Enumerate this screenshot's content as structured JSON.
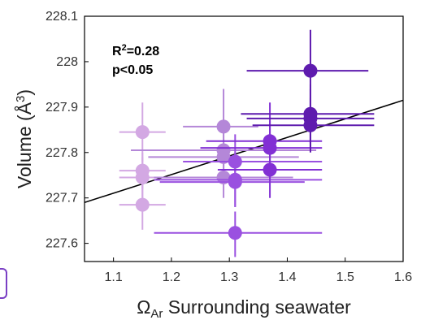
{
  "chart_data": {
    "type": "scatter",
    "title": "",
    "xlabel_symbol": "Ω",
    "xlabel_sub": "Ar",
    "xlabel_rest": " Surrounding seawater",
    "ylabel_main": "Volume (Å",
    "ylabel_sup": "3",
    "ylabel_end": ")",
    "xlim": [
      1.05,
      1.6
    ],
    "ylim": [
      227.56,
      228.1
    ],
    "xticks": [
      "1.1",
      "1.2",
      "1.3",
      "1.4",
      "1.5",
      "1.6"
    ],
    "xtick_values": [
      1.1,
      1.2,
      1.3,
      1.4,
      1.5,
      1.6
    ],
    "yticks": [
      "227.6",
      "227.7",
      "227.8",
      "227.9",
      "228",
      "228.1"
    ],
    "ytick_values": [
      227.6,
      227.7,
      227.8,
      227.9,
      228.0,
      228.1
    ],
    "annotations": {
      "r2_prefix": "R",
      "r2_sup": "2",
      "r2_value": "=0.28",
      "p_value": "p<0.05"
    },
    "fit_line": {
      "x": [
        1.05,
        1.6
      ],
      "y": [
        227.69,
        227.915
      ],
      "color": "#000000"
    },
    "points": [
      {
        "x": 1.15,
        "y": 227.845,
        "xerr": [
          1.11,
          1.19
        ],
        "yerr": [
          227.78,
          227.91
        ],
        "color": "#d3a8e3"
      },
      {
        "x": 1.15,
        "y": 227.76,
        "xerr": [
          1.11,
          1.19
        ],
        "yerr": [
          227.72,
          227.8
        ],
        "color": "#d3a8e3"
      },
      {
        "x": 1.15,
        "y": 227.745,
        "xerr": [
          1.11,
          1.19
        ],
        "yerr": [
          227.7,
          227.79
        ],
        "color": "#d3a8e3"
      },
      {
        "x": 1.15,
        "y": 227.685,
        "xerr": [
          1.11,
          1.19
        ],
        "yerr": [
          227.63,
          227.74
        ],
        "color": "#d3a8e3"
      },
      {
        "x": 1.29,
        "y": 227.857,
        "xerr": [
          1.22,
          1.35
        ],
        "yerr": [
          227.77,
          227.94
        ],
        "color": "#b487d8"
      },
      {
        "x": 1.29,
        "y": 227.805,
        "xerr": [
          1.13,
          1.45
        ],
        "yerr": [
          227.76,
          227.85
        ],
        "color": "#b487d8"
      },
      {
        "x": 1.29,
        "y": 227.79,
        "xerr": [
          1.16,
          1.42
        ],
        "yerr": [
          227.75,
          227.83
        ],
        "color": "#b487d8"
      },
      {
        "x": 1.29,
        "y": 227.745,
        "xerr": [
          1.17,
          1.41
        ],
        "yerr": [
          227.7,
          227.79
        ],
        "color": "#b487d8"
      },
      {
        "x": 1.31,
        "y": 227.78,
        "xerr": [
          1.22,
          1.46
        ],
        "yerr": [
          227.72,
          227.84
        ],
        "color": "#9a50e0"
      },
      {
        "x": 1.31,
        "y": 227.74,
        "xerr": [
          1.17,
          1.46
        ],
        "yerr": [
          227.68,
          227.8
        ],
        "color": "#9a50e0"
      },
      {
        "x": 1.31,
        "y": 227.735,
        "xerr": [
          1.18,
          1.43
        ],
        "yerr": [
          227.68,
          227.79
        ],
        "color": "#9a50e0"
      },
      {
        "x": 1.31,
        "y": 227.623,
        "xerr": [
          1.17,
          1.46
        ],
        "yerr": [
          227.57,
          227.67
        ],
        "color": "#9a50e0"
      },
      {
        "x": 1.37,
        "y": 227.825,
        "xerr": [
          1.26,
          1.46
        ],
        "yerr": [
          227.75,
          227.91
        ],
        "color": "#8230d4"
      },
      {
        "x": 1.37,
        "y": 227.81,
        "xerr": [
          1.25,
          1.46
        ],
        "yerr": [
          227.75,
          227.87
        ],
        "color": "#8230d4"
      },
      {
        "x": 1.37,
        "y": 227.762,
        "xerr": [
          1.28,
          1.46
        ],
        "yerr": [
          227.7,
          227.82
        ],
        "color": "#8230d4"
      },
      {
        "x": 1.44,
        "y": 227.98,
        "xerr": [
          1.33,
          1.54
        ],
        "yerr": [
          227.89,
          228.07
        ],
        "color": "#5e1bae"
      },
      {
        "x": 1.44,
        "y": 227.885,
        "xerr": [
          1.32,
          1.55
        ],
        "yerr": [
          227.82,
          227.95
        ],
        "color": "#5e1bae"
      },
      {
        "x": 1.44,
        "y": 227.875,
        "xerr": [
          1.33,
          1.55
        ],
        "yerr": [
          227.81,
          227.94
        ],
        "color": "#5e1bae"
      },
      {
        "x": 1.44,
        "y": 227.86,
        "xerr": [
          1.34,
          1.55
        ],
        "yerr": [
          227.8,
          227.92
        ],
        "color": "#5e1bae"
      }
    ]
  }
}
